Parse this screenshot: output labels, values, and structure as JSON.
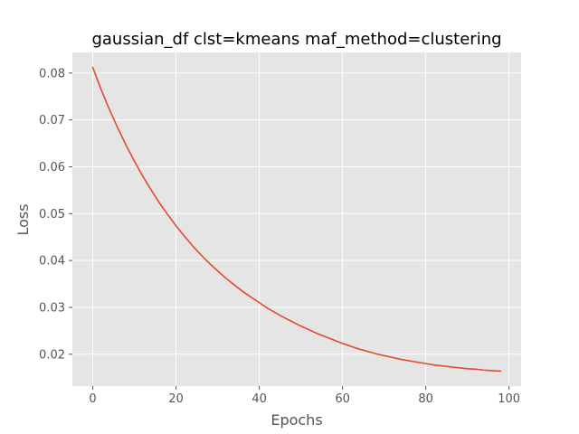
{
  "chart_data": {
    "type": "line",
    "title": "gaussian_df clst=kmeans maf_method=clustering",
    "xlabel": "Epochs",
    "ylabel": "Loss",
    "xlim": [
      -4.9,
      102.9
    ],
    "ylim": [
      0.0132,
      0.0844
    ],
    "xticks": [
      0,
      20,
      40,
      60,
      80,
      100
    ],
    "xtick_labels": [
      "0",
      "20",
      "40",
      "60",
      "80",
      "100"
    ],
    "yticks": [
      0.02,
      0.03,
      0.04,
      0.05,
      0.06,
      0.07,
      0.08
    ],
    "ytick_labels": [
      "0.02",
      "0.03",
      "0.04",
      "0.05",
      "0.06",
      "0.07",
      "0.08"
    ],
    "grid": true,
    "series": [
      {
        "color": "#e24a33",
        "x": [
          0,
          2,
          4,
          6,
          8,
          10,
          12,
          14,
          16,
          18,
          20,
          22,
          24,
          26,
          28,
          30,
          32,
          34,
          36,
          38,
          40,
          42,
          44,
          46,
          48,
          50,
          52,
          54,
          56,
          58,
          60,
          62,
          64,
          66,
          68,
          70,
          72,
          74,
          76,
          78,
          80,
          82,
          84,
          86,
          88,
          90,
          92,
          94,
          96,
          98
        ],
        "y": [
          0.0812,
          0.0765,
          0.0722,
          0.0683,
          0.0646,
          0.0612,
          0.058,
          0.0551,
          0.0523,
          0.0498,
          0.0474,
          0.0452,
          0.0431,
          0.0412,
          0.0394,
          0.0378,
          0.0362,
          0.0348,
          0.0334,
          0.0322,
          0.031,
          0.0298,
          0.0288,
          0.0278,
          0.0269,
          0.026,
          0.0252,
          0.0244,
          0.0237,
          0.023,
          0.0223,
          0.0217,
          0.0211,
          0.0206,
          0.0201,
          0.0197,
          0.0193,
          0.0189,
          0.0186,
          0.0183,
          0.018,
          0.0177,
          0.0175,
          0.0173,
          0.0171,
          0.0169,
          0.0168,
          0.0166,
          0.0165,
          0.0164
        ]
      }
    ]
  }
}
